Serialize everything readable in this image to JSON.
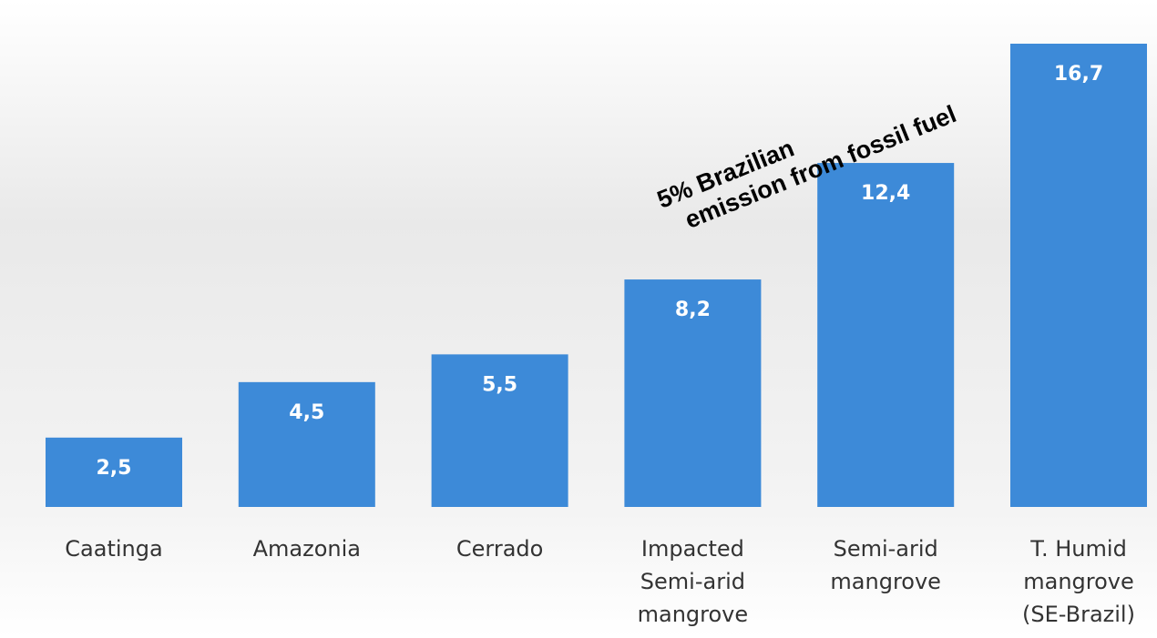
{
  "chart_data": {
    "type": "bar",
    "categories": [
      [
        "Caatinga"
      ],
      [
        "Amazonia"
      ],
      [
        "Cerrado"
      ],
      [
        "Impacted",
        "Semi-arid",
        "mangrove"
      ],
      [
        "Semi-arid",
        "mangrove"
      ],
      [
        "T. Humid",
        "mangrove",
        "(SE-Brazil)"
      ]
    ],
    "values": [
      2.5,
      4.5,
      5.5,
      8.2,
      12.4,
      16.7
    ],
    "value_labels": [
      "2,5",
      "4,5",
      "5,5",
      "8,2",
      "12,4",
      "16,7"
    ],
    "color": "#3d8ad8",
    "annotation": [
      "5% Brazilian",
      "emission from fossil fuel"
    ]
  }
}
